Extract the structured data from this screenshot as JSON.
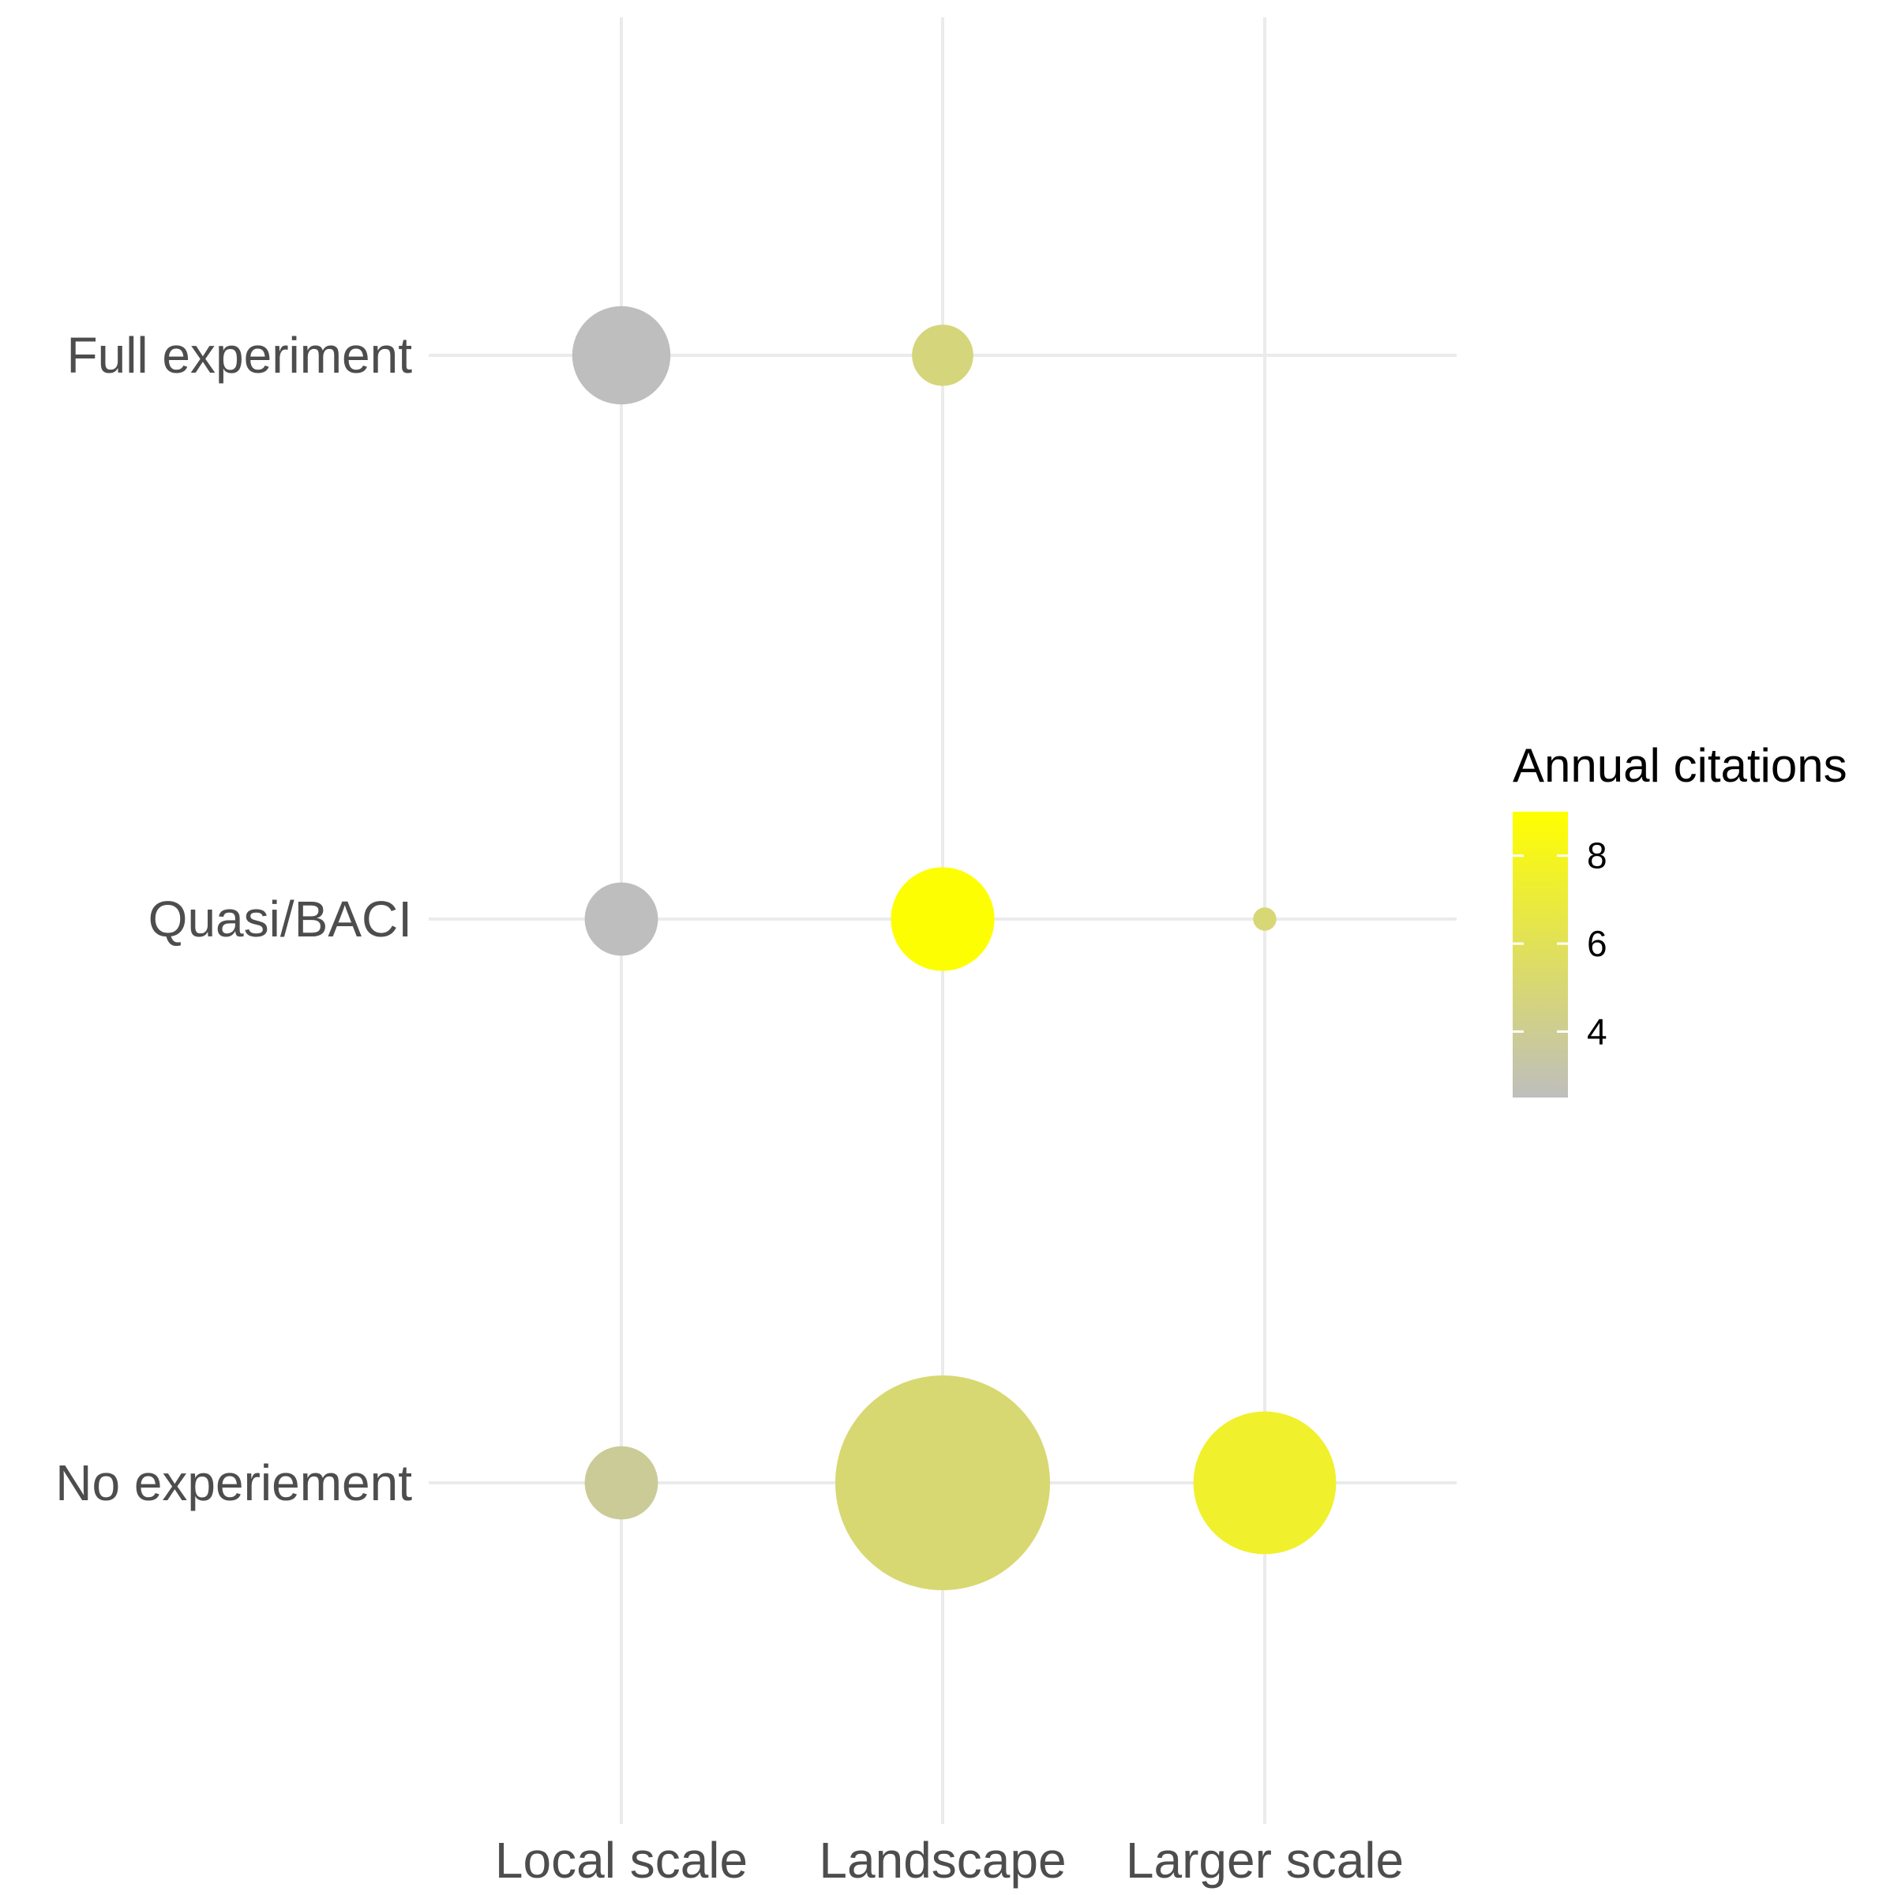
{
  "chart_data": {
    "type": "scatter",
    "x_categories": [
      "Local scale",
      "Landscape",
      "Larger scale"
    ],
    "y_categories": [
      "Full experiment",
      "Quasi/BACI",
      "No experiement"
    ],
    "points": [
      {
        "x": "Local scale",
        "y": "Full experiment",
        "size": 9,
        "annual_citations": 2.5
      },
      {
        "x": "Landscape",
        "y": "Full experiment",
        "size": 3.5,
        "annual_citations": 4.8
      },
      {
        "x": "Local scale",
        "y": "Quasi/BACI",
        "size": 5,
        "annual_citations": 2.5
      },
      {
        "x": "Landscape",
        "y": "Quasi/BACI",
        "size": 10,
        "annual_citations": 8.9
      },
      {
        "x": "Larger scale",
        "y": "Quasi/BACI",
        "size": 0.5,
        "annual_citations": 5
      },
      {
        "x": "Local scale",
        "y": "No experiement",
        "size": 5,
        "annual_citations": 3.8
      },
      {
        "x": "Landscape",
        "y": "No experiement",
        "size": 43,
        "annual_citations": 5.1
      },
      {
        "x": "Larger scale",
        "y": "No experiement",
        "size": 19,
        "annual_citations": 7.5
      }
    ],
    "legend": {
      "title": "Annual citations",
      "ticks": [
        "4",
        "6",
        "8"
      ],
      "tick_values": [
        4,
        6,
        8
      ],
      "range": [
        2.5,
        9
      ],
      "colors": {
        "low": "#bebebe",
        "high": "#ffff00"
      },
      "placement": "right"
    },
    "grid": true
  }
}
